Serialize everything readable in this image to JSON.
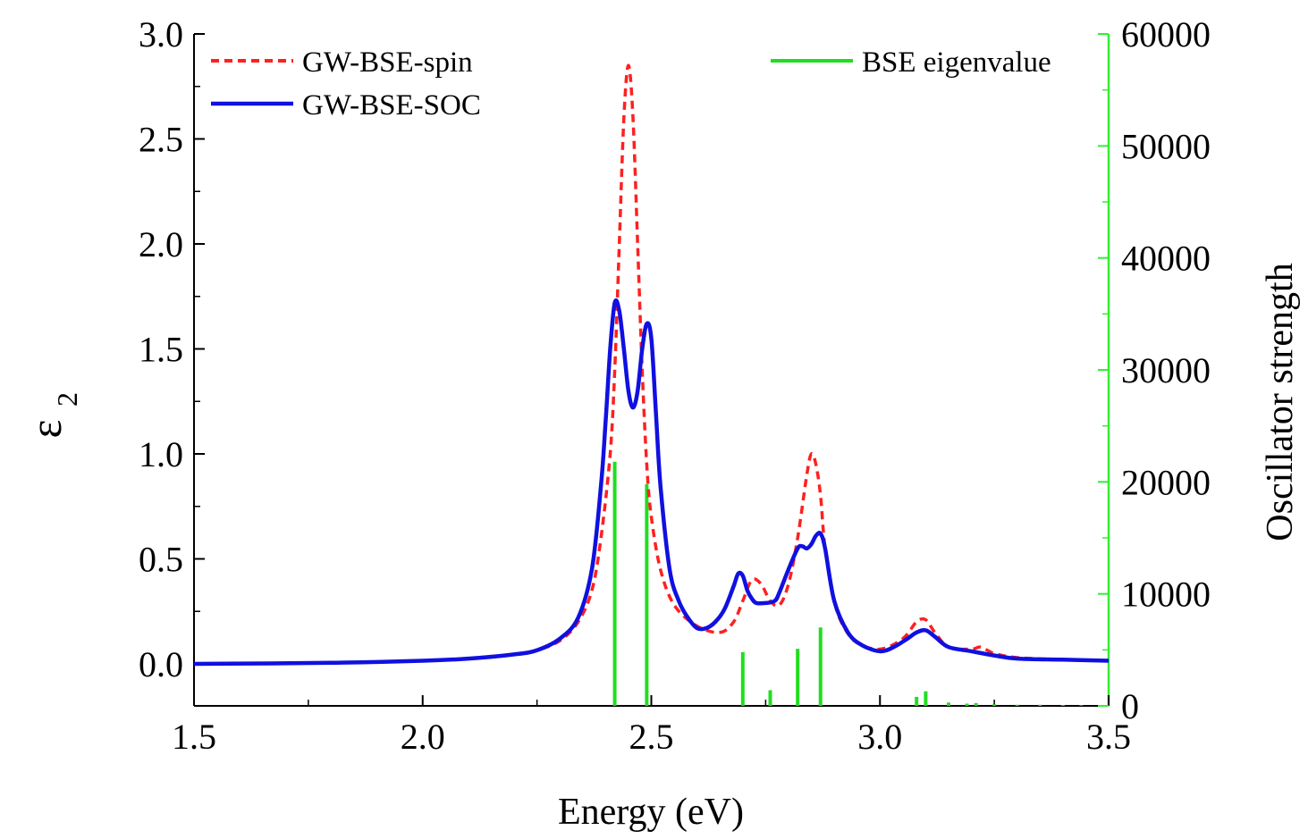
{
  "chart_data": {
    "type": "line",
    "xlabel": "Energy (eV)",
    "ylabel_left": "ε",
    "ylabel_left_subscript": "2",
    "ylabel_right": "Oscillator strength",
    "xlim": [
      1.5,
      3.5
    ],
    "ylim_left": [
      -0.2,
      3.0
    ],
    "ylim_right": [
      0,
      60000
    ],
    "x_ticks": [
      "1.5",
      "2.0",
      "2.5",
      "3.0",
      "3.5"
    ],
    "y_left_ticks": [
      "0.0",
      "0.5",
      "1.0",
      "1.5",
      "2.0",
      "2.5",
      "3.0"
    ],
    "y_right_ticks": [
      "0",
      "10000",
      "20000",
      "30000",
      "40000",
      "50000",
      "60000"
    ],
    "grid": false,
    "legend_left_placement": "top-left",
    "legend_right_placement": "top-right",
    "colors": {
      "spin": "#ff2020",
      "soc": "#1010e0",
      "bse": "#22dd22",
      "right_axis": "#33ee33"
    },
    "series": [
      {
        "name": "GW-BSE-spin",
        "style": "dashed",
        "axis": "left",
        "x": [
          1.5,
          1.8,
          2.0,
          2.1,
          2.2,
          2.25,
          2.3,
          2.34,
          2.37,
          2.39,
          2.41,
          2.42,
          2.43,
          2.44,
          2.45,
          2.46,
          2.47,
          2.48,
          2.49,
          2.5,
          2.52,
          2.55,
          2.6,
          2.65,
          2.68,
          2.7,
          2.72,
          2.74,
          2.76,
          2.78,
          2.8,
          2.82,
          2.84,
          2.85,
          2.86,
          2.87,
          2.88,
          2.9,
          2.92,
          2.95,
          3.0,
          3.05,
          3.08,
          3.1,
          3.12,
          3.15,
          3.2,
          3.22,
          3.25,
          3.3,
          3.4,
          3.5
        ],
        "y": [
          0.0,
          0.005,
          0.015,
          0.025,
          0.045,
          0.065,
          0.11,
          0.2,
          0.35,
          0.6,
          1.0,
          1.4,
          2.0,
          2.6,
          2.85,
          2.6,
          2.0,
          1.4,
          0.95,
          0.7,
          0.45,
          0.28,
          0.18,
          0.15,
          0.2,
          0.3,
          0.4,
          0.38,
          0.3,
          0.28,
          0.38,
          0.6,
          0.9,
          1.0,
          0.95,
          0.8,
          0.55,
          0.3,
          0.18,
          0.1,
          0.07,
          0.12,
          0.2,
          0.21,
          0.15,
          0.08,
          0.07,
          0.08,
          0.05,
          0.03,
          0.02,
          0.015
        ]
      },
      {
        "name": "GW-BSE-SOC",
        "style": "solid",
        "axis": "left",
        "x": [
          1.5,
          1.8,
          2.0,
          2.1,
          2.2,
          2.25,
          2.3,
          2.34,
          2.37,
          2.39,
          2.4,
          2.41,
          2.42,
          2.43,
          2.44,
          2.45,
          2.46,
          2.47,
          2.48,
          2.49,
          2.5,
          2.51,
          2.52,
          2.54,
          2.56,
          2.58,
          2.6,
          2.62,
          2.64,
          2.66,
          2.68,
          2.69,
          2.7,
          2.71,
          2.72,
          2.73,
          2.75,
          2.77,
          2.78,
          2.8,
          2.82,
          2.83,
          2.84,
          2.85,
          2.86,
          2.87,
          2.88,
          2.9,
          2.93,
          2.96,
          3.0,
          3.03,
          3.06,
          3.08,
          3.1,
          3.12,
          3.15,
          3.2,
          3.25,
          3.3,
          3.4,
          3.5
        ],
        "y": [
          0.0,
          0.005,
          0.015,
          0.025,
          0.045,
          0.065,
          0.12,
          0.22,
          0.45,
          0.85,
          1.15,
          1.5,
          1.72,
          1.68,
          1.5,
          1.3,
          1.22,
          1.3,
          1.5,
          1.62,
          1.55,
          1.2,
          0.85,
          0.45,
          0.3,
          0.22,
          0.17,
          0.17,
          0.2,
          0.26,
          0.37,
          0.43,
          0.42,
          0.35,
          0.31,
          0.29,
          0.29,
          0.3,
          0.34,
          0.45,
          0.55,
          0.56,
          0.55,
          0.57,
          0.61,
          0.62,
          0.55,
          0.3,
          0.15,
          0.09,
          0.06,
          0.08,
          0.12,
          0.15,
          0.16,
          0.13,
          0.08,
          0.06,
          0.04,
          0.025,
          0.02,
          0.015
        ]
      },
      {
        "name": "BSE eigenvalue",
        "style": "sticks",
        "axis": "right",
        "x": [
          2.42,
          2.49,
          2.7,
          2.76,
          2.82,
          2.87,
          3.08,
          3.1,
          3.15,
          3.19,
          3.21,
          3.25,
          3.3,
          3.35,
          3.4,
          3.44
        ],
        "y": [
          21800,
          19800,
          4800,
          1400,
          5100,
          7000,
          800,
          1300,
          300,
          200,
          250,
          150,
          100,
          100,
          80,
          60
        ]
      }
    ]
  }
}
